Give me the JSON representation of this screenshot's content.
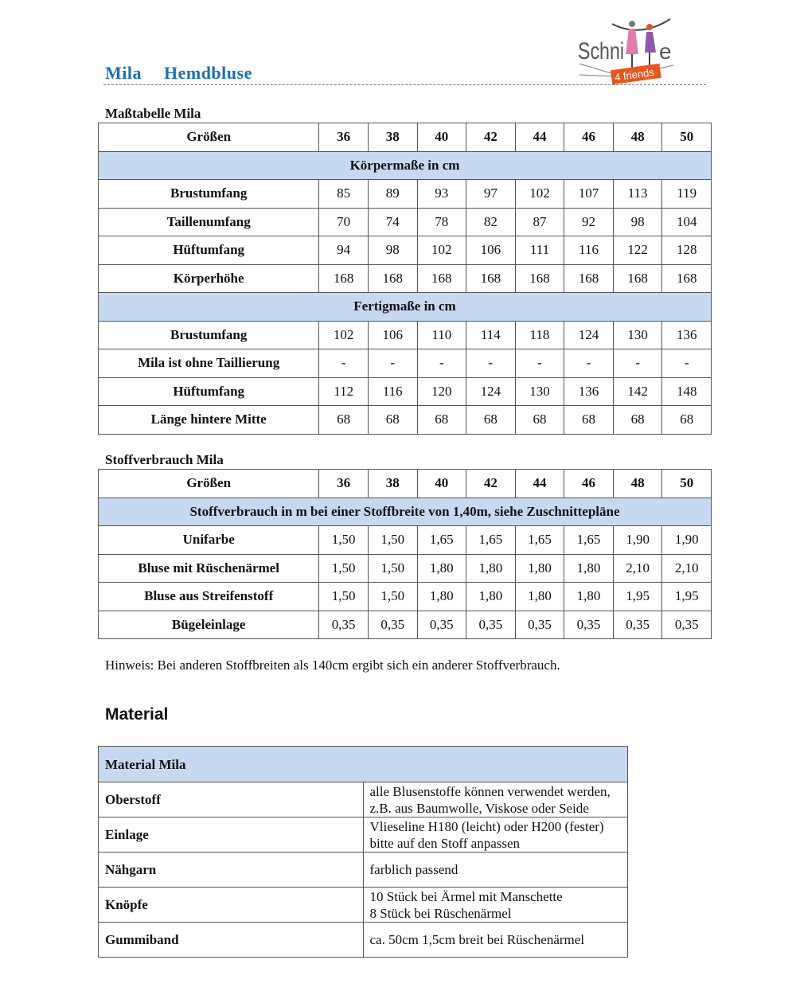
{
  "header": {
    "title": "Mila  Hemdbluse",
    "logo_text": "Schnitte 4 friends",
    "colors": {
      "title": "#1a6fb5",
      "band": "#c6d9f1",
      "logo_orange": "#e8561c"
    }
  },
  "sizes_table": {
    "caption": "Maßtabelle Mila",
    "header_label": "Größen",
    "sizes": [
      "36",
      "38",
      "40",
      "42",
      "44",
      "46",
      "48",
      "50"
    ],
    "sections": [
      {
        "title": "Körpermaße in cm",
        "rows": [
          {
            "label": "Brustumfang",
            "values": [
              "85",
              "89",
              "93",
              "97",
              "102",
              "107",
              "113",
              "119"
            ]
          },
          {
            "label": "Taillenumfang",
            "values": [
              "70",
              "74",
              "78",
              "82",
              "87",
              "92",
              "98",
              "104"
            ]
          },
          {
            "label": "Hüftumfang",
            "values": [
              "94",
              "98",
              "102",
              "106",
              "111",
              "116",
              "122",
              "128"
            ]
          },
          {
            "label": "Körperhöhe",
            "values": [
              "168",
              "168",
              "168",
              "168",
              "168",
              "168",
              "168",
              "168"
            ]
          }
        ]
      },
      {
        "title": "Fertigmaße in cm",
        "rows": [
          {
            "label": "Brustumfang",
            "values": [
              "102",
              "106",
              "110",
              "114",
              "118",
              "124",
              "130",
              "136"
            ]
          },
          {
            "label": "Mila ist ohne Taillierung",
            "values": [
              "-",
              "-",
              "-",
              "-",
              "-",
              "-",
              "-",
              "-"
            ]
          },
          {
            "label": "Hüftumfang",
            "values": [
              "112",
              "116",
              "120",
              "124",
              "130",
              "136",
              "142",
              "148"
            ]
          },
          {
            "label": "Länge hintere Mitte",
            "values": [
              "68",
              "68",
              "68",
              "68",
              "68",
              "68",
              "68",
              "68"
            ]
          }
        ]
      }
    ]
  },
  "fabric_table": {
    "caption": "Stoffverbrauch Mila",
    "header_label": "Größen",
    "sizes": [
      "36",
      "38",
      "40",
      "42",
      "44",
      "46",
      "48",
      "50"
    ],
    "sections": [
      {
        "title": "Stoffverbrauch in m bei einer Stoffbreite von 1,40m, siehe Zuschnittepläne",
        "rows": [
          {
            "label": "Unifarbe",
            "values": [
              "1,50",
              "1,50",
              "1,65",
              "1,65",
              "1,65",
              "1,65",
              "1,90",
              "1,90"
            ]
          },
          {
            "label": "Bluse mit Rüschenärmel",
            "values": [
              "1,50",
              "1,50",
              "1,80",
              "1,80",
              "1,80",
              "1,80",
              "2,10",
              "2,10"
            ]
          },
          {
            "label": "Bluse aus Streifenstoff",
            "values": [
              "1,50",
              "1,50",
              "1,80",
              "1,80",
              "1,80",
              "1,80",
              "1,95",
              "1,95"
            ]
          },
          {
            "label": "Bügeleinlage",
            "values": [
              "0,35",
              "0,35",
              "0,35",
              "0,35",
              "0,35",
              "0,35",
              "0,35",
              "0,35"
            ]
          }
        ]
      }
    ]
  },
  "note": "Hinweis: Bei anderen Stoffbreiten als 140cm ergibt sich ein anderer Stoffverbrauch.",
  "material": {
    "heading": "Material",
    "table_title": "Material Mila",
    "rows": [
      {
        "key": "Oberstoff",
        "lines": [
          "alle Blusenstoffe können verwendet werden,",
          "z.B. aus Baumwolle, Viskose oder Seide"
        ]
      },
      {
        "key": "Einlage",
        "lines": [
          "Vlieseline H180 (leicht) oder H200 (fester)",
          "bitte auf den Stoff anpassen"
        ]
      },
      {
        "key": "Nähgarn",
        "lines": [
          "farblich passend"
        ]
      },
      {
        "key": "Knöpfe",
        "lines": [
          "10 Stück bei Ärmel mit Manschette",
          "8 Stück bei Rüschenärmel"
        ]
      },
      {
        "key": "Gummiband",
        "lines": [
          "ca. 50cm 1,5cm breit bei Rüschenärmel"
        ]
      }
    ]
  }
}
